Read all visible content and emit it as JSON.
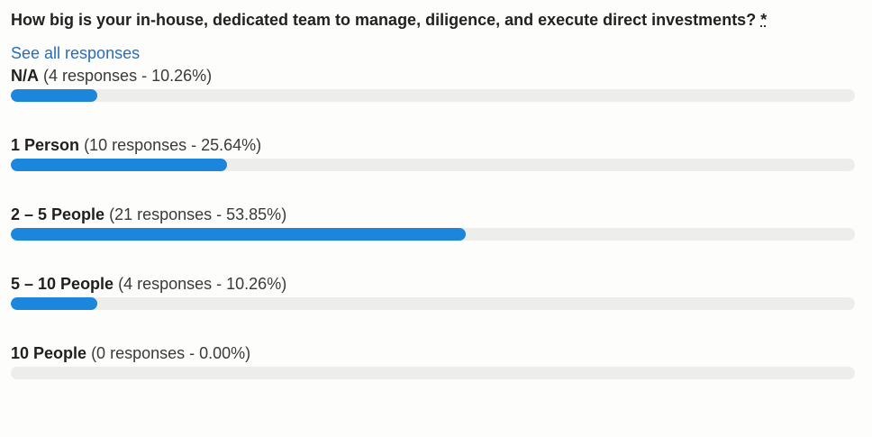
{
  "question": {
    "text": "How big is your in-house, dedicated team to manage, diligence, and execute direct investments?",
    "required_marker": "*"
  },
  "see_all_label": "See all responses",
  "colors": {
    "bar_fill": "#1c85dc",
    "bar_track": "#ededeb",
    "link": "#2b6cb8"
  },
  "options": [
    {
      "name": "N/A",
      "stats": "(4 responses - 10.26%)",
      "fraction": 0.1026
    },
    {
      "name": "1 Person",
      "stats": "(10 responses - 25.64%)",
      "fraction": 0.2564
    },
    {
      "name": "2 – 5 People",
      "stats": "(21 responses - 53.85%)",
      "fraction": 0.5385
    },
    {
      "name": "5 – 10 People",
      "stats": "(4 responses - 10.26%)",
      "fraction": 0.1026
    },
    {
      "name": "10 People",
      "stats": "(0 responses - 0.00%)",
      "fraction": 0.0
    }
  ]
}
